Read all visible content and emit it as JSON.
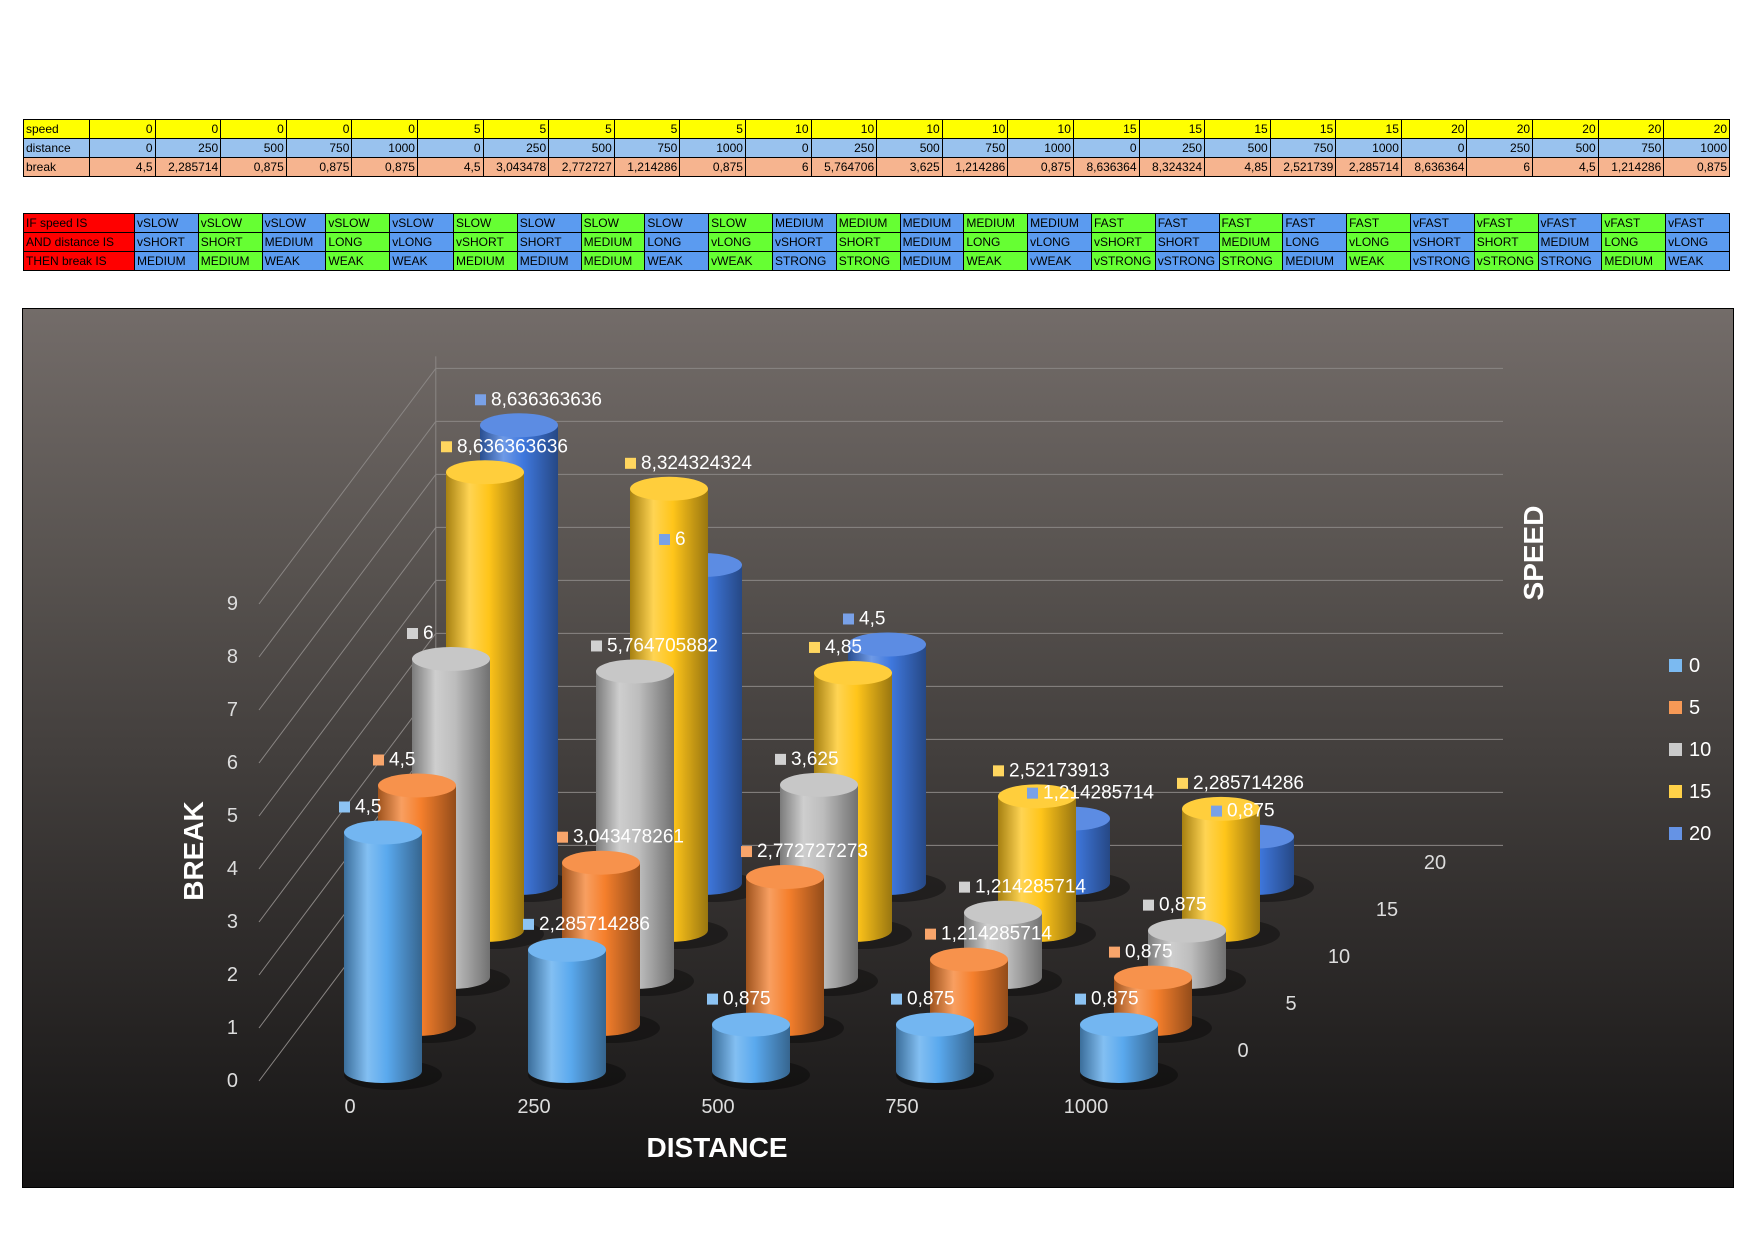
{
  "colors": {
    "speed_row": "#ffff00",
    "distance_row": "#99c2ee",
    "break_row": "#f6b48f",
    "if_header": "#ff0000",
    "blue_cell": "#5b9bf0",
    "green_cell": "#66ff33"
  },
  "table": {
    "rows": [
      {
        "label": "speed",
        "values": [
          "0",
          "0",
          "0",
          "0",
          "0",
          "5",
          "5",
          "5",
          "5",
          "5",
          "10",
          "10",
          "10",
          "10",
          "10",
          "15",
          "15",
          "15",
          "15",
          "15",
          "20",
          "20",
          "20",
          "20",
          "20"
        ]
      },
      {
        "label": "distance",
        "values": [
          "0",
          "250",
          "500",
          "750",
          "1000",
          "0",
          "250",
          "500",
          "750",
          "1000",
          "0",
          "250",
          "500",
          "750",
          "1000",
          "0",
          "250",
          "500",
          "750",
          "1000",
          "0",
          "250",
          "500",
          "750",
          "1000"
        ]
      },
      {
        "label": "break",
        "values": [
          "4,5",
          "2,285714",
          "0,875",
          "0,875",
          "0,875",
          "4,5",
          "3,043478",
          "2,772727",
          "1,214286",
          "0,875",
          "6",
          "5,764706",
          "3,625",
          "1,214286",
          "0,875",
          "8,636364",
          "8,324324",
          "4,85",
          "2,521739",
          "2,285714",
          "8,636364",
          "6",
          "4,5",
          "1,214286",
          "0,875"
        ]
      }
    ]
  },
  "rules": {
    "rows": [
      {
        "label": "IF speed IS",
        "values": [
          "vSLOW",
          "vSLOW",
          "vSLOW",
          "vSLOW",
          "vSLOW",
          "SLOW",
          "SLOW",
          "SLOW",
          "SLOW",
          "SLOW",
          "MEDIUM",
          "MEDIUM",
          "MEDIUM",
          "MEDIUM",
          "MEDIUM",
          "FAST",
          "FAST",
          "FAST",
          "FAST",
          "FAST",
          "vFAST",
          "vFAST",
          "vFAST",
          "vFAST",
          "vFAST"
        ]
      },
      {
        "label": "AND distance IS",
        "values": [
          "vSHORT",
          "SHORT",
          "MEDIUM",
          "LONG",
          "vLONG",
          "vSHORT",
          "SHORT",
          "MEDIUM",
          "LONG",
          "vLONG",
          "vSHORT",
          "SHORT",
          "MEDIUM",
          "LONG",
          "vLONG",
          "vSHORT",
          "SHORT",
          "MEDIUM",
          "LONG",
          "vLONG",
          "vSHORT",
          "SHORT",
          "MEDIUM",
          "LONG",
          "vLONG"
        ]
      },
      {
        "label": "THEN break IS",
        "values": [
          "MEDIUM",
          "MEDIUM",
          "WEAK",
          "WEAK",
          "WEAK",
          "MEDIUM",
          "MEDIUM",
          "MEDIUM",
          "WEAK",
          "vWEAK",
          "STRONG",
          "STRONG",
          "MEDIUM",
          "WEAK",
          "vWEAK",
          "vSTRONG",
          "vSTRONG",
          "STRONG",
          "MEDIUM",
          "WEAK",
          "vSTRONG",
          "vSTRONG",
          "STRONG",
          "MEDIUM",
          "WEAK"
        ]
      }
    ]
  },
  "chart_data": {
    "type": "bar",
    "subtype": "3d-cylinder",
    "xlabel": "DISTANCE",
    "ylabel": "BREAK",
    "zlabel": "SPEED",
    "ylim": [
      0,
      9
    ],
    "y_ticks": [
      "0",
      "1",
      "2",
      "3",
      "4",
      "5",
      "6",
      "7",
      "8",
      "9"
    ],
    "categories": [
      "0",
      "250",
      "500",
      "750",
      "1000"
    ],
    "depth_ticks": [
      "0",
      "5",
      "10",
      "15",
      "20"
    ],
    "legend_position": "right",
    "series": [
      {
        "name": "0",
        "color": "#5aa9ee",
        "values": [
          4.5,
          2.285714286,
          0.875,
          0.875,
          0.875
        ],
        "labels": [
          "4,5",
          "2,285714286",
          "0,875",
          "0,875",
          "0,875"
        ]
      },
      {
        "name": "5",
        "color": "#f57f2c",
        "values": [
          4.5,
          3.043478261,
          2.772727273,
          1.214285714,
          0.875
        ],
        "labels": [
          "4,5",
          "3,043478261",
          "2,772727273",
          "1,214285714",
          "0,875"
        ]
      },
      {
        "name": "10",
        "color": "#bdbdbd",
        "values": [
          6,
          5.764705882,
          3.625,
          1.214285714,
          0.875
        ],
        "labels": [
          "6",
          "5,764705882",
          "3,625",
          "1,214285714",
          "0,875"
        ]
      },
      {
        "name": "15",
        "color": "#ffc51a",
        "values": [
          8.636363636,
          8.324324324,
          4.85,
          2.52173913,
          2.285714286
        ],
        "labels": [
          "8,636363636",
          "8,324324324",
          "4,85",
          "2,52173913",
          "2,285714286"
        ]
      },
      {
        "name": "20",
        "color": "#3f78de",
        "values": [
          8.636363636,
          6,
          4.5,
          1.214285714,
          0.875
        ],
        "labels": [
          "8,636363636",
          "6",
          "4,5",
          "1,214285714",
          "0,875"
        ]
      }
    ]
  }
}
